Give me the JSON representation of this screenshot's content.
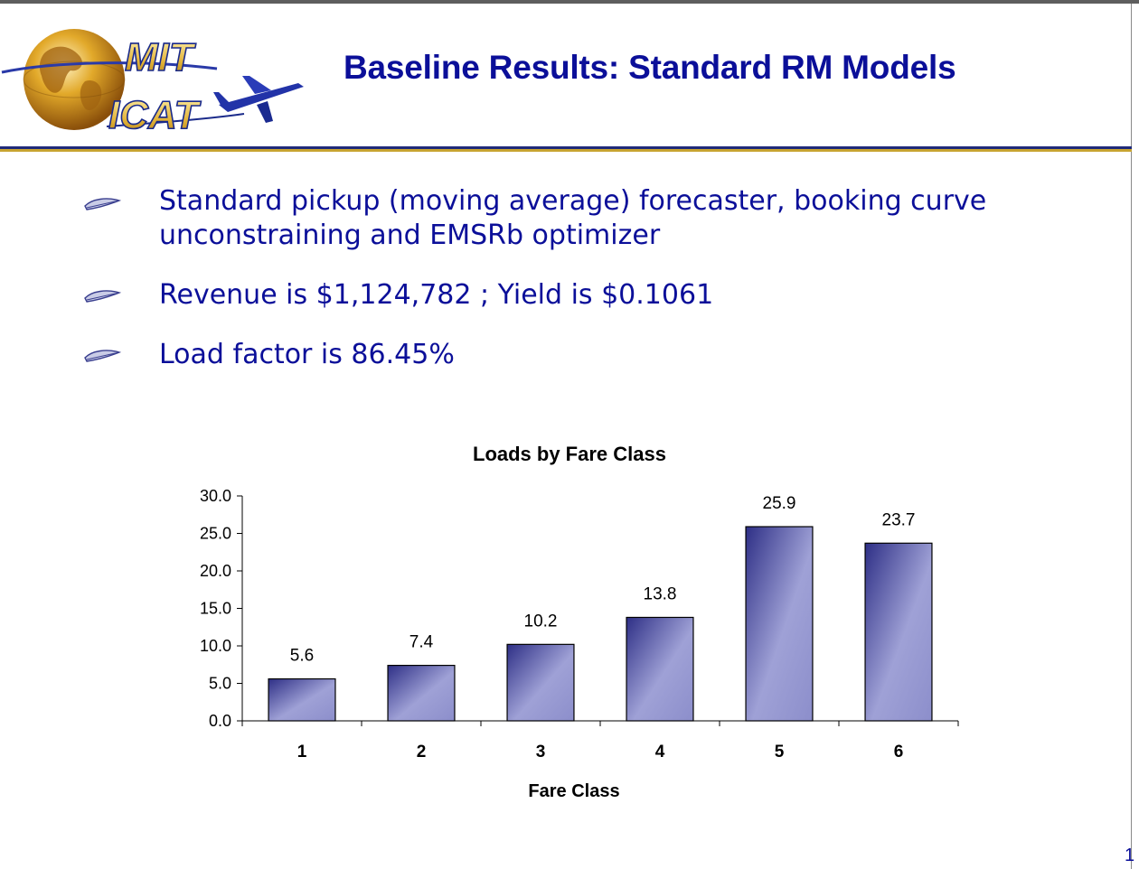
{
  "slide": {
    "title": "Baseline Results: Standard RM Models",
    "page_number": "1"
  },
  "logo": {
    "line1": "MIT",
    "line2": "ICAT"
  },
  "bullets": [
    "Standard pickup (moving average) forecaster, booking curve unconstraining and EMSRb optimizer",
    "Revenue is $1,124,782 ; Yield is $0.1061",
    "Load factor is 86.45%"
  ],
  "colors": {
    "title": "#0b0f99",
    "bar_dark": "#2e2f86",
    "bar_light": "#9fa1d6",
    "accent_gold": "#c8a431"
  },
  "chart_data": {
    "type": "bar",
    "title": "Loads by Fare Class",
    "xlabel": "Fare Class",
    "ylabel": "",
    "categories": [
      "1",
      "2",
      "3",
      "4",
      "5",
      "6"
    ],
    "values": [
      5.6,
      7.4,
      10.2,
      13.8,
      25.9,
      23.7
    ],
    "value_labels": [
      "5.6",
      "7.4",
      "10.2",
      "13.8",
      "25.9",
      "23.7"
    ],
    "ylim": [
      0,
      30
    ],
    "yticks": [
      "0.0",
      "5.0",
      "10.0",
      "15.0",
      "20.0",
      "25.0",
      "30.0"
    ],
    "grid": false,
    "legend": "none"
  }
}
